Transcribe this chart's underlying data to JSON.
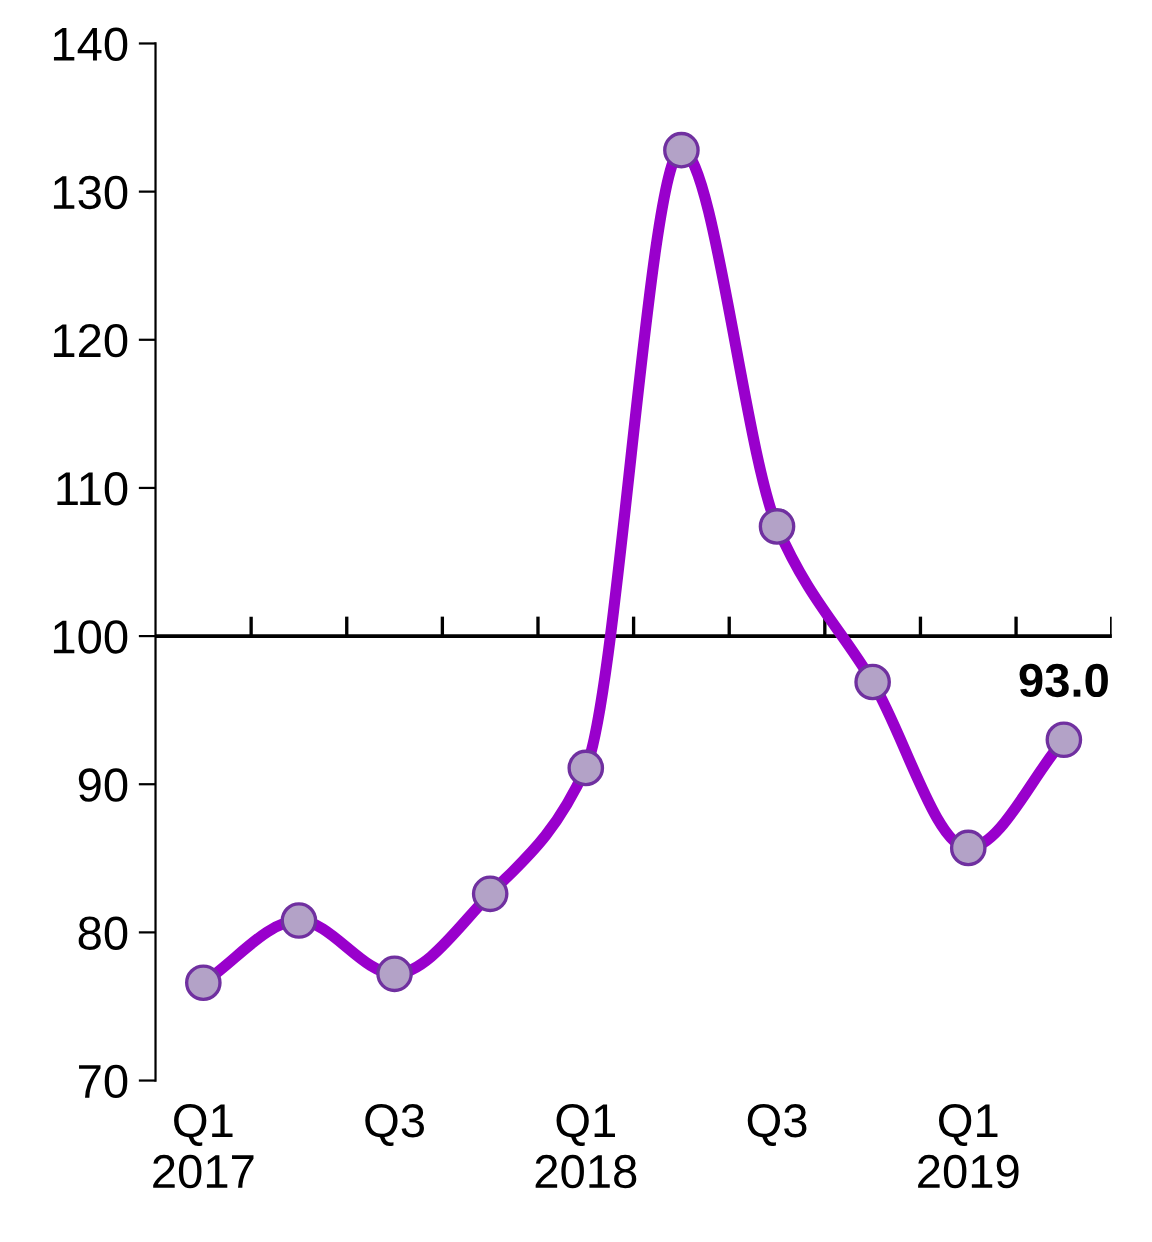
{
  "chart_data": {
    "type": "line",
    "categories": [
      "Q1\n2017",
      null,
      "Q3",
      null,
      "Q1\n2018",
      null,
      "Q3",
      null,
      "Q1\n2019",
      null
    ],
    "series": [
      {
        "color": "#9900cc",
        "values": [
          76.6,
          80.8,
          77.2,
          82.6,
          91.1,
          132.8,
          107.4,
          96.9,
          85.7,
          93.0
        ],
        "value_labels": [
          null,
          null,
          null,
          null,
          null,
          null,
          null,
          null,
          null,
          "93.0"
        ]
      }
    ],
    "ylim": [
      70,
      140
    ],
    "yticks": [
      70,
      80,
      90,
      100,
      110,
      120,
      130,
      140
    ],
    "ref_lines": [
      {
        "axis": "y",
        "value": 100,
        "color": "#000000"
      }
    ],
    "marker": "circle",
    "line_style": "solid",
    "grid": false
  }
}
